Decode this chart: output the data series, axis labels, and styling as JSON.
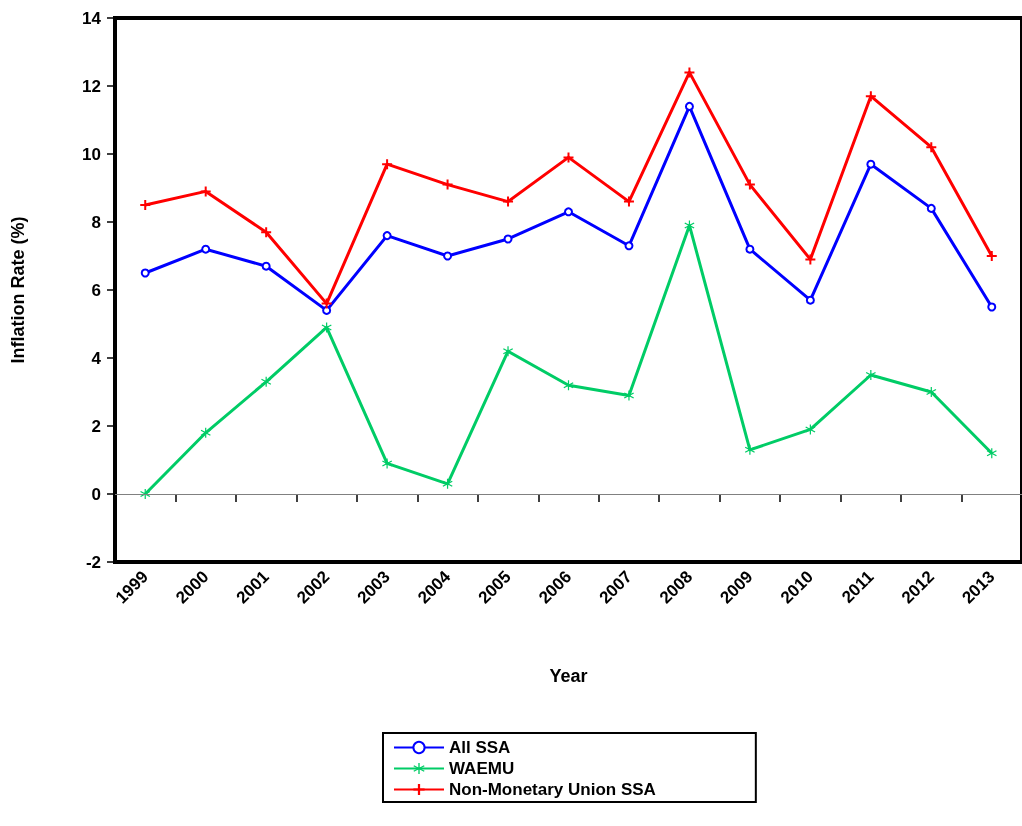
{
  "chart_data": {
    "type": "line",
    "xlabel": "Year",
    "ylabel": "Inflation Rate (%)",
    "categories": [
      "1999",
      "2000",
      "2001",
      "2002",
      "2003",
      "2004",
      "2005",
      "2006",
      "2007",
      "2008",
      "2009",
      "2010",
      "2011",
      "2012",
      "2013"
    ],
    "series": [
      {
        "name": "All SSA",
        "color": "#0000ff",
        "marker": "circle",
        "values": [
          6.5,
          7.2,
          6.7,
          5.4,
          7.6,
          7.0,
          7.5,
          8.3,
          7.3,
          11.4,
          7.2,
          5.7,
          9.7,
          8.4,
          5.5
        ]
      },
      {
        "name": "WAEMU",
        "color": "#00cc66",
        "marker": "star",
        "values": [
          0.0,
          1.8,
          3.3,
          4.9,
          0.9,
          0.3,
          4.2,
          3.2,
          2.9,
          7.9,
          1.3,
          1.9,
          3.5,
          3.0,
          1.2
        ]
      },
      {
        "name": "Non-Monetary Union SSA",
        "color": "#ff0000",
        "marker": "cross",
        "values": [
          8.5,
          8.9,
          7.7,
          5.6,
          9.7,
          9.1,
          8.6,
          9.9,
          8.6,
          12.4,
          9.1,
          6.9,
          11.7,
          10.2,
          7.0
        ]
      }
    ],
    "ylim": [
      -2,
      14
    ],
    "yticks": [
      -2,
      0,
      2,
      4,
      6,
      8,
      10,
      12,
      14
    ],
    "ref_lines": [
      {
        "axis": "y",
        "value": 0,
        "color": "#808080"
      }
    ],
    "grid": false,
    "legend": "bottom",
    "line_style": "solid"
  }
}
